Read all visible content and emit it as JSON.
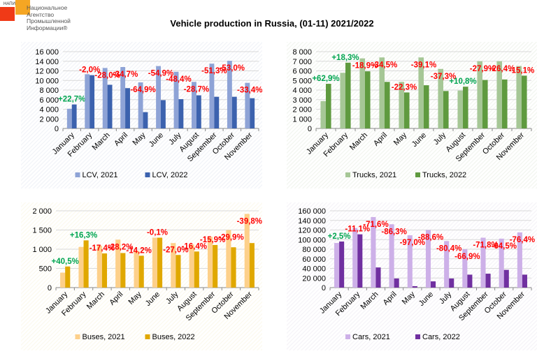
{
  "header": {
    "logo_abbr": "НАПИ",
    "logo_lines": [
      "Национальное",
      "Агентство",
      "Промышленной",
      "Информации®"
    ],
    "title": "Vehicle production in Russia, (01-11) 2021/2022"
  },
  "colors": {
    "positive": "#00a550",
    "negative": "#ff0000"
  },
  "chart_data": [
    {
      "id": "lcv",
      "type": "bar",
      "title": "",
      "categories": [
        "January",
        "February",
        "March",
        "April",
        "May",
        "June",
        "July",
        "August",
        "September",
        "October",
        "November"
      ],
      "ylim": [
        0,
        16000
      ],
      "yticks": [
        0,
        2000,
        4000,
        6000,
        8000,
        10000,
        12000,
        14000,
        16000
      ],
      "ytick_labels": [
        "0",
        "2 000",
        "4 000",
        "6 000",
        "8 000",
        "10 000",
        "12 000",
        "14 000",
        "16 000"
      ],
      "grid": true,
      "legend": "bottom",
      "series": [
        {
          "name": "LCV, 2021",
          "color": "#8ea3d6",
          "values": [
            4100,
            11300,
            12600,
            12800,
            9600,
            13000,
            11800,
            9700,
            13500,
            14100,
            9500
          ]
        },
        {
          "name": "LCV, 2022",
          "color": "#3c62ae",
          "values": [
            5000,
            11100,
            9100,
            8400,
            3400,
            5900,
            6100,
            6900,
            6600,
            6600,
            6300
          ]
        }
      ],
      "annotations": [
        "+22,7%",
        "-2,0%",
        "-28,0%",
        "-34,7%",
        "-64,9%",
        "-54,9%",
        "-48,4%",
        "-28,7%",
        "-51,3%",
        "-53,0%",
        "-33,4%"
      ],
      "bg": "#f1f3f8"
    },
    {
      "id": "trucks",
      "type": "bar",
      "title": "",
      "categories": [
        "January",
        "February",
        "March",
        "April",
        "May",
        "June",
        "July",
        "August",
        "September",
        "October",
        "November"
      ],
      "ylim": [
        0,
        8000
      ],
      "yticks": [
        0,
        1000,
        2000,
        3000,
        4000,
        5000,
        6000,
        7000,
        8000
      ],
      "ytick_labels": [
        "0",
        "1 000",
        "2 000",
        "3 000",
        "4 000",
        "5 000",
        "6 000",
        "7 000",
        "8 000"
      ],
      "grid": true,
      "legend": "bottom",
      "series": [
        {
          "name": "Trucks, 2021",
          "color": "#a6c796",
          "values": [
            2850,
            5800,
            7300,
            7400,
            4850,
            7400,
            6200,
            3950,
            7000,
            7000,
            6500
          ]
        },
        {
          "name": "Trucks, 2022",
          "color": "#5f9a3f",
          "values": [
            4650,
            6850,
            5950,
            4850,
            3750,
            4500,
            3900,
            4350,
            5050,
            5100,
            5500
          ]
        }
      ],
      "annotations": [
        "+62,9%",
        "+18,3%",
        "-18,9%",
        "-34,5%",
        "-22,3%",
        "-39,1%",
        "-37,3%",
        "+10,8%",
        "-27,9%",
        "-26,4%",
        "-15,1%"
      ],
      "bg": "#f2f5ef"
    },
    {
      "id": "buses",
      "type": "bar",
      "title": "",
      "categories": [
        "January",
        "February",
        "March",
        "April",
        "May",
        "June",
        "July",
        "August",
        "September",
        "October",
        "November"
      ],
      "ylim": [
        0,
        2000
      ],
      "yticks": [
        0,
        500,
        1000,
        1500,
        2000
      ],
      "ytick_labels": [
        "0",
        "500",
        "1 000",
        "1 500",
        "2 000"
      ],
      "grid": true,
      "legend": "bottom",
      "series": [
        {
          "name": "Buses, 2021",
          "color": "#fdd08a",
          "values": [
            390,
            1060,
            1090,
            1250,
            960,
            1300,
            1160,
            1120,
            1320,
            1500,
            1920
          ]
        },
        {
          "name": "Buses, 2022",
          "color": "#e0a800",
          "values": [
            550,
            1230,
            890,
            900,
            830,
            1300,
            850,
            940,
            1110,
            1050,
            1160
          ]
        }
      ],
      "annotations": [
        "+40,5%",
        "+16,3%",
        "-17,4%",
        "-28,2%",
        "-14,2%",
        "-0,1%",
        "-27,0%",
        "-16,4%",
        "-15,9%",
        "-29,9%",
        "-39,8%"
      ],
      "bg": "#fcf9ee"
    },
    {
      "id": "cars",
      "type": "bar",
      "title": "",
      "categories": [
        "January",
        "February",
        "March",
        "April",
        "May",
        "June",
        "July",
        "August",
        "September",
        "October",
        "November"
      ],
      "ylim": [
        0,
        160000
      ],
      "yticks": [
        0,
        20000,
        40000,
        60000,
        80000,
        100000,
        120000,
        140000,
        160000
      ],
      "ytick_labels": [
        "0",
        "20 000",
        "40 000",
        "60 000",
        "80 000",
        "100 000",
        "120 000",
        "140 000",
        "160 000"
      ],
      "grid": true,
      "legend": "bottom",
      "series": [
        {
          "name": "Cars, 2021",
          "color": "#cdb0e8",
          "values": [
            93000,
            124000,
            147000,
            132000,
            109000,
            120000,
            97000,
            80000,
            104000,
            102000,
            115000
          ]
        },
        {
          "name": "Cars, 2022",
          "color": "#7030a0",
          "values": [
            96000,
            111000,
            42000,
            19000,
            3000,
            13000,
            19000,
            27000,
            29000,
            37000,
            27000
          ]
        }
      ],
      "annotations": [
        "+2,5%",
        "-11,1%",
        "-71,6%",
        "-86,3%",
        "-97,0%",
        "-88,6%",
        "-80,4%",
        "-66,9%",
        "-71,8%",
        "-64,5%",
        "-76,4%"
      ],
      "bg": "#f5f3f8"
    }
  ]
}
